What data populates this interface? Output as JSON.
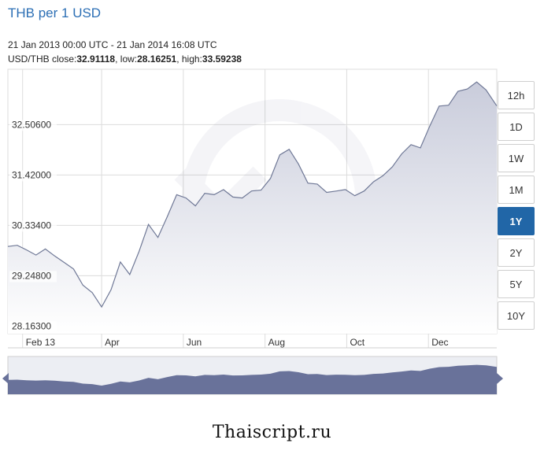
{
  "header": {
    "title": "THB per 1 USD",
    "date_range": "21 Jan 2013 00:00 UTC - 21 Jan 2014 16:08 UTC",
    "pair": "USD/THB",
    "close_label": "close:",
    "close_value": "32.91118",
    "low_label": "low:",
    "low_value": "28.16251",
    "high_label": "high:",
    "high_value": "33.59238"
  },
  "range_buttons": [
    {
      "label": "12h",
      "active": false
    },
    {
      "label": "1D",
      "active": false
    },
    {
      "label": "1W",
      "active": false
    },
    {
      "label": "1M",
      "active": false
    },
    {
      "label": "1Y",
      "active": true
    },
    {
      "label": "2Y",
      "active": false
    },
    {
      "label": "5Y",
      "active": false
    },
    {
      "label": "10Y",
      "active": false
    }
  ],
  "footer": {
    "watermark": "Thaiscript.ru"
  },
  "colors": {
    "line": "#6f7896",
    "fill_top": "#c9ccdb",
    "fill_bottom": "#ffffff",
    "grid": "#dcdcdc",
    "navigator_fill": "#69729a",
    "active_button": "#2166a7",
    "title": "#2c6fb5"
  },
  "chart_data": {
    "type": "area",
    "y_ticks": [
      "32.50600",
      "31.42000",
      "30.33400",
      "29.24800",
      "28.16300"
    ],
    "y_tick_values": [
      32.506,
      31.42,
      30.334,
      29.248,
      28.163
    ],
    "x_ticks": [
      "Feb 13",
      "Apr",
      "Jun",
      "Aug",
      "Oct",
      "Dec"
    ],
    "x_tick_dates": [
      "2013-02-01",
      "2013-04-01",
      "2013-06-01",
      "2013-08-01",
      "2013-10-01",
      "2013-12-01"
    ],
    "x_range": [
      "2013-01-21",
      "2014-01-21"
    ],
    "ylim": [
      28.0,
      33.7
    ],
    "grid": true,
    "series": [
      {
        "x": [
          "2013-01-21",
          "2013-01-28",
          "2013-02-04",
          "2013-02-11",
          "2013-02-18",
          "2013-02-25",
          "2013-03-04",
          "2013-03-11",
          "2013-03-18",
          "2013-03-25",
          "2013-04-01",
          "2013-04-08",
          "2013-04-15",
          "2013-04-22",
          "2013-04-29",
          "2013-05-06",
          "2013-05-13",
          "2013-05-20",
          "2013-05-27",
          "2013-06-03",
          "2013-06-10",
          "2013-06-17",
          "2013-06-24",
          "2013-07-01",
          "2013-07-08",
          "2013-07-15",
          "2013-07-22",
          "2013-07-29",
          "2013-08-05",
          "2013-08-12",
          "2013-08-19",
          "2013-08-26",
          "2013-09-02",
          "2013-09-09",
          "2013-09-16",
          "2013-09-23",
          "2013-09-30",
          "2013-10-07",
          "2013-10-14",
          "2013-10-21",
          "2013-10-28",
          "2013-11-04",
          "2013-11-11",
          "2013-11-18",
          "2013-11-25",
          "2013-12-02",
          "2013-12-09",
          "2013-12-16",
          "2013-12-23",
          "2013-12-30",
          "2014-01-06",
          "2014-01-13",
          "2014-01-21"
        ],
        "values": [
          29.88,
          29.93,
          29.78,
          29.72,
          29.8,
          29.7,
          29.51,
          29.42,
          29.02,
          28.91,
          28.55,
          28.97,
          29.52,
          29.3,
          29.75,
          30.38,
          30.05,
          30.55,
          30.97,
          30.95,
          30.73,
          31.05,
          30.97,
          31.13,
          30.92,
          30.95,
          31.05,
          31.12,
          31.32,
          31.88,
          31.95,
          31.68,
          31.22,
          31.25,
          31.02,
          31.1,
          31.08,
          31.0,
          31.05,
          31.3,
          31.38,
          31.62,
          31.85,
          32.1,
          31.98,
          32.5,
          32.88,
          32.95,
          33.2,
          33.3,
          33.4,
          33.28,
          32.91
        ]
      }
    ]
  }
}
